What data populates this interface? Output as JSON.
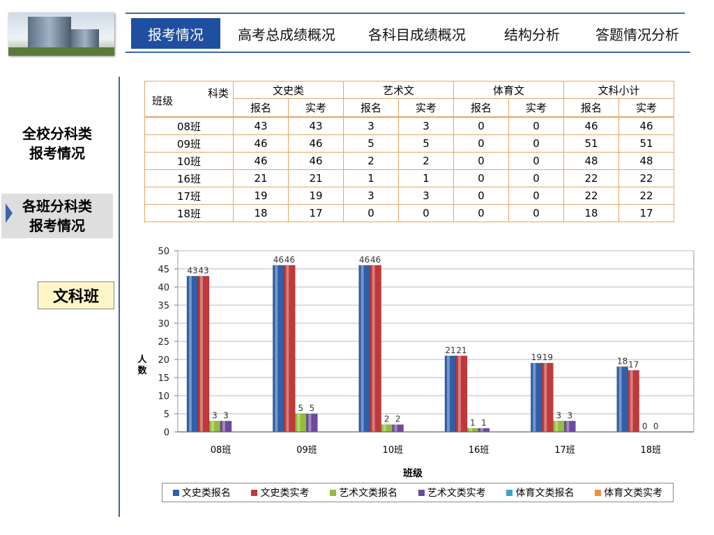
{
  "nav": {
    "items": [
      "报考情况",
      "高考总成绩概况",
      "各科目成绩概况",
      "结构分析",
      "答题情况分析"
    ],
    "active_index": 0
  },
  "sidebar": {
    "items": [
      {
        "line1": "全校分科类",
        "line2": "报考情况"
      },
      {
        "line1": "各班分科类",
        "line2": "报考情况"
      }
    ],
    "selected_index": 1,
    "tag": "文科班"
  },
  "table": {
    "corner_top": "科类",
    "corner_bottom": "班级",
    "groups": [
      "文史类",
      "艺术文",
      "体育文",
      "文科小计"
    ],
    "subheaders": [
      "报名",
      "实考"
    ],
    "rows": [
      [
        "08班",
        "43",
        "43",
        "3",
        "3",
        "0",
        "0",
        "46",
        "46"
      ],
      [
        "09班",
        "46",
        "46",
        "5",
        "5",
        "0",
        "0",
        "51",
        "51"
      ],
      [
        "10班",
        "46",
        "46",
        "2",
        "2",
        "0",
        "0",
        "48",
        "48"
      ],
      [
        "16班",
        "21",
        "21",
        "1",
        "1",
        "0",
        "0",
        "22",
        "22"
      ],
      [
        "17班",
        "19",
        "19",
        "3",
        "3",
        "0",
        "0",
        "22",
        "22"
      ],
      [
        "18班",
        "18",
        "17",
        "0",
        "0",
        "0",
        "0",
        "18",
        "17"
      ]
    ]
  },
  "chart_data": {
    "type": "bar",
    "categories": [
      "08班",
      "09班",
      "10班",
      "16班",
      "17班",
      "18班"
    ],
    "series": [
      {
        "name": "文史类报名",
        "values": [
          43,
          46,
          46,
          21,
          19,
          18
        ],
        "color": "#2f5fa8"
      },
      {
        "name": "文史类实考",
        "values": [
          43,
          46,
          46,
          21,
          19,
          17
        ],
        "color": "#c0393a"
      },
      {
        "name": "艺术文类报名",
        "values": [
          3,
          5,
          2,
          1,
          3,
          0
        ],
        "color": "#93bd3e"
      },
      {
        "name": "艺术文类实考",
        "values": [
          3,
          5,
          2,
          1,
          3,
          0
        ],
        "color": "#6c4a9c"
      },
      {
        "name": "体育文类报名",
        "values": [
          0,
          0,
          0,
          0,
          0,
          0
        ],
        "color": "#3aa6c4"
      },
      {
        "name": "体育文类实考",
        "values": [
          0,
          0,
          0,
          0,
          0,
          0
        ],
        "color": "#f0913a"
      }
    ],
    "xlabel": "班级",
    "ylabel": "人数",
    "ylim": [
      0,
      50
    ],
    "yticks": [
      0,
      5,
      10,
      15,
      20,
      25,
      30,
      35,
      40,
      45,
      50
    ],
    "grid": true,
    "legend": "bottom"
  }
}
